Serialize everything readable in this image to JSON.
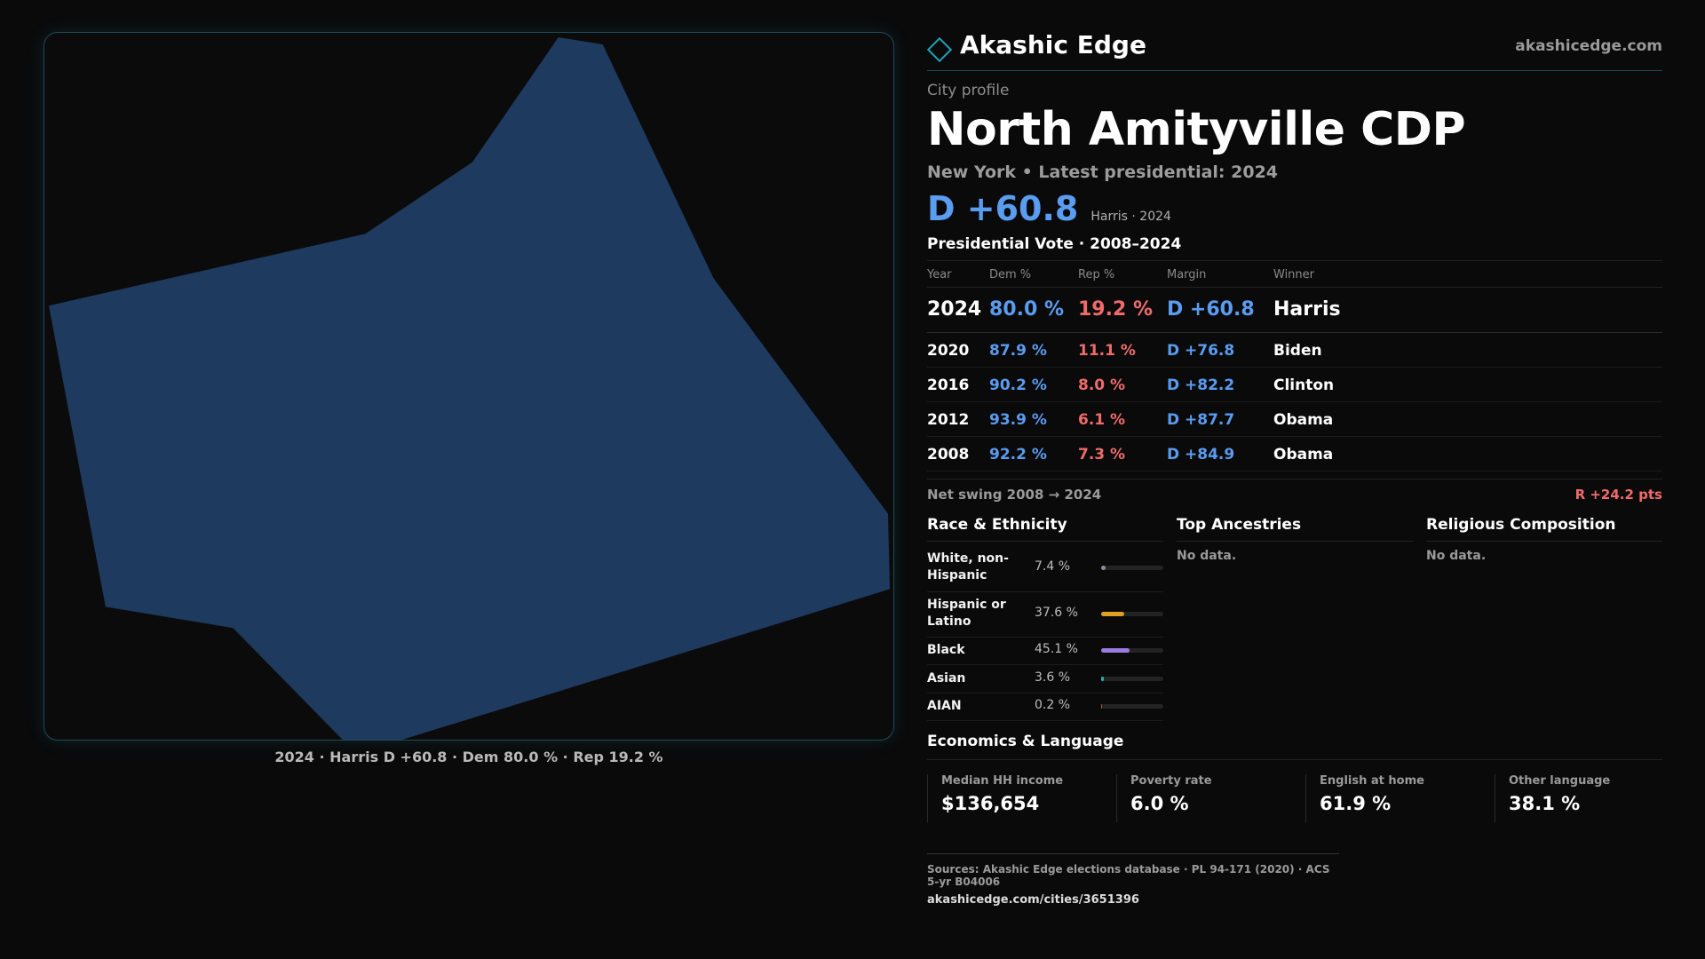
{
  "brand": {
    "name": "Akashic Edge",
    "url": "akashicedge.com"
  },
  "profile": {
    "kicker": "City profile",
    "title": "North Amityville CDP",
    "subline": "New York  • Latest presidential: 2024",
    "headline_margin": "D +60.8",
    "headline_note": "Harris · 2024"
  },
  "map": {
    "caption": "2024 · Harris D +60.8 · Dem 80.0 % · Rep 19.2 %",
    "fill_color": "#1f3a5f"
  },
  "presidential": {
    "title": "Presidential Vote · 2008–2024",
    "columns": [
      "Year",
      "Dem %",
      "Rep %",
      "Margin",
      "Winner"
    ],
    "rows": [
      {
        "year": "2024",
        "dem": "80.0 %",
        "rep": "19.2 %",
        "margin": "D +60.8",
        "winner": "Harris"
      },
      {
        "year": "2020",
        "dem": "87.9 %",
        "rep": "11.1 %",
        "margin": "D +76.8",
        "winner": "Biden"
      },
      {
        "year": "2016",
        "dem": "90.2 %",
        "rep": "8.0 %",
        "margin": "D +82.2",
        "winner": "Clinton"
      },
      {
        "year": "2012",
        "dem": "93.9 %",
        "rep": "6.1 %",
        "margin": "D +87.7",
        "winner": "Obama"
      },
      {
        "year": "2008",
        "dem": "92.2 %",
        "rep": "7.3 %",
        "margin": "D +84.9",
        "winner": "Obama"
      }
    ],
    "swing_label": "Net swing 2008 → 2024",
    "swing_value": "R +24.2 pts"
  },
  "race": {
    "title": "Race & Ethnicity",
    "rows": [
      {
        "label": "White, non-Hispanic",
        "pct": "7.4 %",
        "value": 7.4,
        "color": "#8a8f98"
      },
      {
        "label": "Hispanic or Latino",
        "pct": "37.6 %",
        "value": 37.6,
        "color": "#e0a020"
      },
      {
        "label": "Black",
        "pct": "45.1 %",
        "value": 45.1,
        "color": "#9b7be0"
      },
      {
        "label": "Asian",
        "pct": "3.6 %",
        "value": 3.6,
        "color": "#2ab59a"
      },
      {
        "label": "AIAN",
        "pct": "0.2 %",
        "value": 0.2,
        "color": "#c05050"
      }
    ]
  },
  "ancestries": {
    "title": "Top Ancestries",
    "empty": "No data."
  },
  "religion": {
    "title": "Religious Composition",
    "empty": "No data."
  },
  "economics": {
    "title": "Economics & Language",
    "cells": [
      {
        "label": "Median HH income",
        "value": "$136,654"
      },
      {
        "label": "Poverty rate",
        "value": "6.0 %"
      },
      {
        "label": "English at home",
        "value": "61.9 %"
      },
      {
        "label": "Other language",
        "value": "38.1 %"
      }
    ]
  },
  "sources": {
    "text": "Sources: Akashic Edge elections database · PL 94-171 (2020) · ACS 5-yr B04006",
    "url": "akashicedge.com/cities/3651396"
  }
}
